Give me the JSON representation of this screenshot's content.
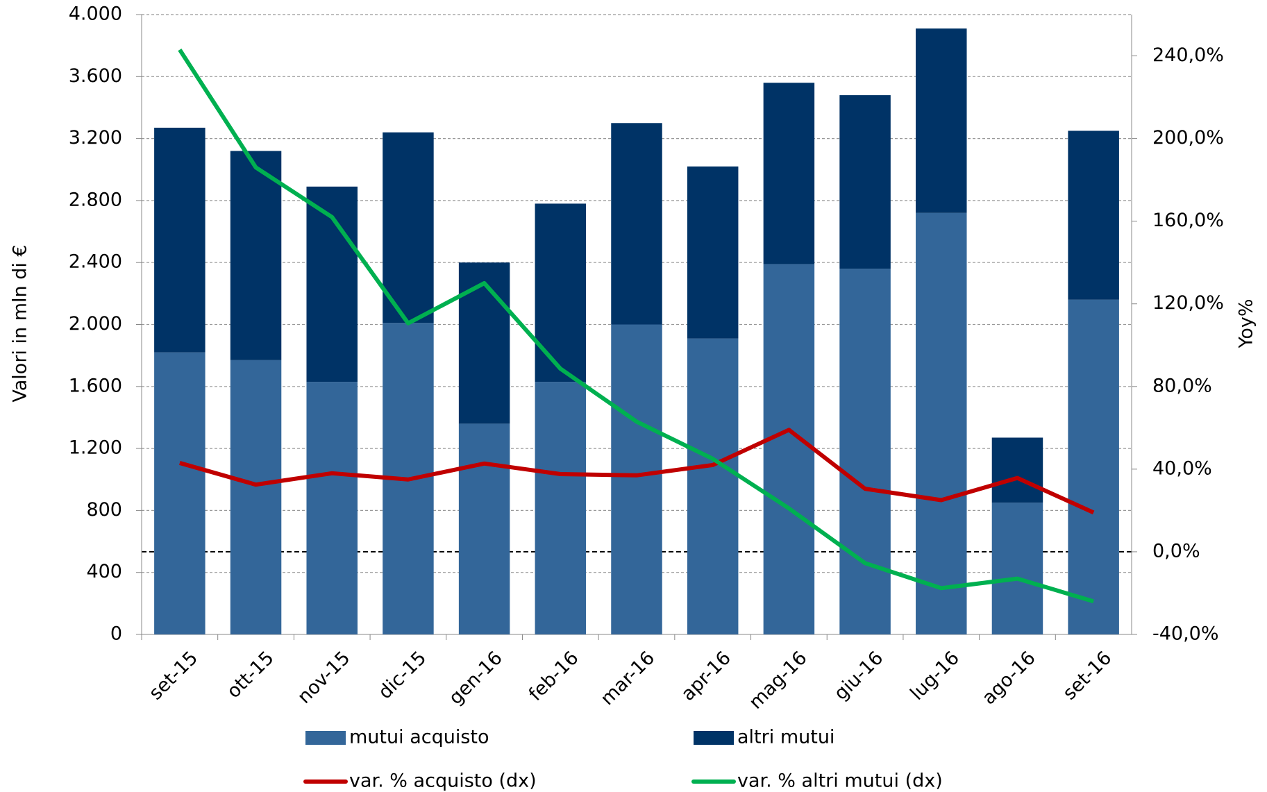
{
  "chart_data": {
    "type": "bar-line",
    "y_label": "Valori in mln di €",
    "y2_label": "Yoy%",
    "categories": [
      "set-15",
      "ott-15",
      "nov-15",
      "dic-15",
      "gen-16",
      "feb-16",
      "mar-16",
      "apr-16",
      "mag-16",
      "giu-16",
      "lug-16",
      "ago-16",
      "set-16"
    ],
    "series": [
      {
        "name": "mutui acquisto",
        "color": "#336699",
        "kind": "bar",
        "values": [
          1820,
          1770,
          1630,
          2010,
          1360,
          1630,
          2000,
          1910,
          2390,
          2360,
          2720,
          850,
          2160
        ]
      },
      {
        "name": "altri mutui",
        "color": "#003366",
        "kind": "bar",
        "values": [
          1450,
          1350,
          1260,
          1230,
          1040,
          1150,
          1300,
          1110,
          1170,
          1120,
          1190,
          420,
          1090
        ]
      },
      {
        "name": "var. % acquisto (dx)",
        "color": "#c00000",
        "kind": "line",
        "axis": "y2",
        "values": [
          43,
          32.5,
          38,
          35,
          42.7,
          37.6,
          37,
          42,
          59,
          30.5,
          25,
          35.7,
          19
        ]
      },
      {
        "name": "var. % altri mutui (dx)",
        "color": "#00b050",
        "kind": "line",
        "axis": "y2",
        "values": [
          243,
          186,
          162,
          110.6,
          130,
          88.6,
          63,
          45,
          21,
          -5.5,
          -17.6,
          -13,
          -24
        ]
      }
    ],
    "ylim": [
      0,
      4000
    ],
    "yticks": [
      0,
      400,
      800,
      {
        "value": 1200,
        "label": "1.200"
      },
      {
        "value": 1600,
        "label": "1.600"
      },
      {
        "value": 2000,
        "label": "2.000"
      },
      {
        "value": 2400,
        "label": "2.400"
      },
      {
        "value": 2800,
        "label": "2.800"
      },
      {
        "value": 3200,
        "label": "3.200"
      },
      {
        "value": 3600,
        "label": "3.600"
      },
      {
        "value": 4000,
        "label": "4.000"
      }
    ],
    "y2lim": [
      -40,
      260
    ],
    "y2ticks": [
      {
        "value": -40,
        "label": "-40,0%"
      },
      {
        "value": 0,
        "label": "0,0%"
      },
      {
        "value": 40,
        "label": "40,0%"
      },
      {
        "value": 80,
        "label": "80,0%"
      },
      {
        "value": 120,
        "label": "120,0%"
      },
      {
        "value": 160,
        "label": "160,0%"
      },
      {
        "value": 200,
        "label": "200,0%"
      },
      {
        "value": 240,
        "label": "240,0%"
      }
    ],
    "grid": true
  }
}
